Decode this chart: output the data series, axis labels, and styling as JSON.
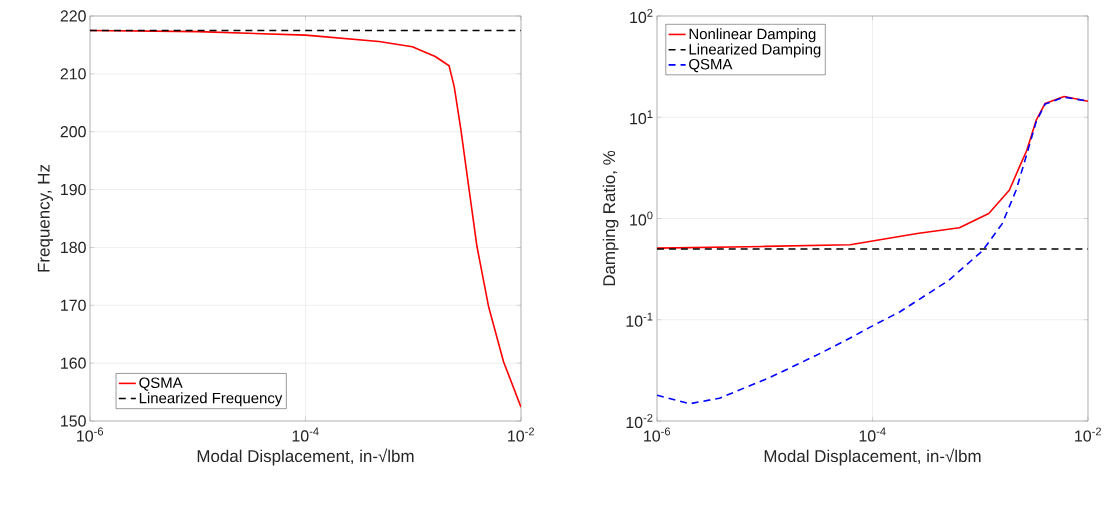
{
  "chart_data": [
    {
      "type": "line",
      "xlabel": "Modal Displacement, in-√lbm",
      "ylabel": "Frequency, Hz",
      "log": "x",
      "grid": true,
      "legend": "bottom left",
      "xlim": [
        1e-06,
        0.01
      ],
      "ylim": [
        150,
        220
      ],
      "xticks": [
        {
          "value": 1e-06,
          "label": "10$^{-6}$"
        },
        {
          "value": 0.0001,
          "label": "10$^{-4}$"
        },
        {
          "value": 0.01,
          "label": "10$^{-2}$"
        }
      ],
      "yticks": [
        150,
        160,
        170,
        180,
        190,
        200,
        210,
        220
      ],
      "series": [
        {
          "name": "QSMA",
          "color": "#ff0000",
          "line_style": "solid",
          "x": [
            1e-06,
            1e-05,
            0.0001,
            0.00048,
            0.00098,
            0.0016,
            0.00215,
            0.0024,
            0.00277,
            0.0033,
            0.0039,
            0.005,
            0.0069,
            0.01
          ],
          "values": [
            217.5,
            217.3,
            216.7,
            215.6,
            214.7,
            213.0,
            211.4,
            207.8,
            200.3,
            190,
            180.2,
            169.8,
            160.2,
            152.4
          ]
        },
        {
          "name": "Linearized Frequency",
          "color": "#000000",
          "line_style": "dashed",
          "x": [
            1e-06,
            0.01
          ],
          "values": [
            217.5,
            217.5
          ]
        }
      ]
    },
    {
      "type": "line",
      "xlabel": "Modal Displacement, in-√lbm",
      "ylabel": "Damping Ratio, %",
      "log": "xy",
      "grid": true,
      "legend": "top left",
      "xlim": [
        1e-06,
        0.01
      ],
      "ylim": [
        0.01,
        100
      ],
      "xticks": [
        {
          "value": 1e-06,
          "label": "10$^{-6}$"
        },
        {
          "value": 0.0001,
          "label": "10$^{-4}$"
        },
        {
          "value": 0.01,
          "label": "10$^{-2}$"
        }
      ],
      "yticks": [
        {
          "value": 0.01,
          "label": "10$^{-2}$"
        },
        {
          "value": 0.1,
          "label": "10$^{-1}$"
        },
        {
          "value": 1,
          "label": "10$^{0}$"
        },
        {
          "value": 10,
          "label": "10$^{1}$"
        },
        {
          "value": 100,
          "label": "10$^{2}$"
        }
      ],
      "series": [
        {
          "name": "Nonlinear Damping",
          "color": "#ff0000",
          "line_style": "solid",
          "x": [
            1e-06,
            1e-05,
            6.2e-05,
            0.00026,
            0.00064,
            0.0012,
            0.00186,
            0.0023,
            0.0027,
            0.0033,
            0.004,
            0.006,
            0.01
          ],
          "values": [
            0.51,
            0.53,
            0.55,
            0.71,
            0.81,
            1.12,
            1.9,
            3.2,
            4.7,
            9.3,
            13.7,
            16,
            14.4
          ]
        },
        {
          "name": "Linearized Damping",
          "color": "#000000",
          "line_style": "dashed",
          "x": [
            1e-06,
            0.01
          ],
          "values": [
            0.5,
            0.5
          ]
        },
        {
          "name": "QSMA",
          "color": "#0000ff",
          "line_style": "dashed",
          "x": [
            1e-06,
            2e-06,
            3.8e-06,
            1.1e-05,
            3.2e-05,
            6.2e-05,
            0.0001,
            0.00018,
            0.00051,
            0.00105,
            0.0016,
            0.00215,
            0.0026,
            0.0033,
            0.004,
            0.006,
            0.01
          ],
          "values": [
            0.018,
            0.0148,
            0.0168,
            0.0267,
            0.046,
            0.066,
            0.087,
            0.12,
            0.245,
            0.48,
            0.89,
            1.9,
            3.75,
            9.0,
            13.5,
            15.8,
            14.4
          ]
        }
      ]
    }
  ]
}
